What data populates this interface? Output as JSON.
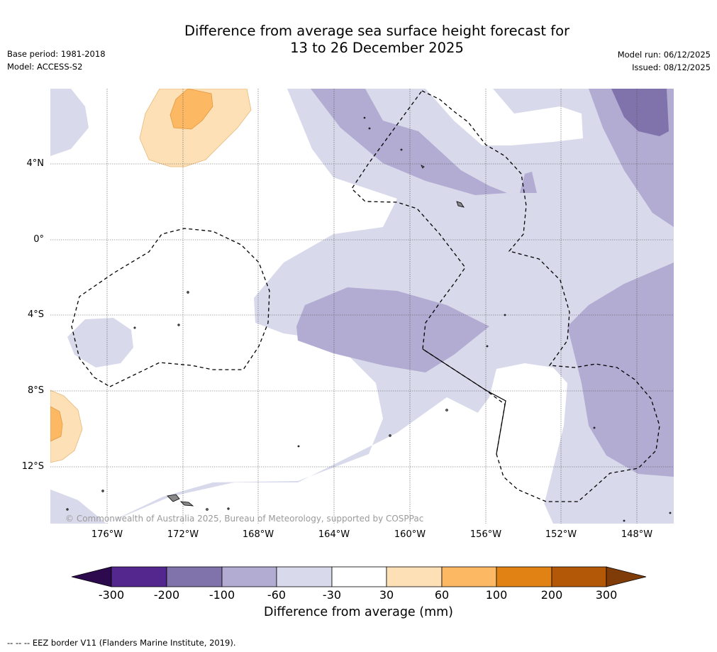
{
  "header": {
    "title_line1": "Difference from average sea surface height forecast for",
    "title_line2": "13 to 26 December 2025",
    "base_period": "Base period: 1981-2018",
    "model": "Model: ACCESS-S2",
    "model_run": "Model run: 06/12/2025",
    "issued": "Issued: 08/12/2025"
  },
  "map": {
    "lat_labels": [
      "4°N",
      "0°",
      "4°S",
      "8°S",
      "12°S"
    ],
    "lon_labels": [
      "176°W",
      "172°W",
      "168°W",
      "164°W",
      "160°W",
      "156°W",
      "152°W",
      "148°W"
    ],
    "copyright": "© Commonwealth of Australia 2025, Bureau of Meteorology, supported by COSPPac",
    "colors": {
      "neg_300": "#2d0a4e",
      "neg_200": "#54278f",
      "neg_100": "#8073ac",
      "neg_60": "#b2abd2",
      "neg_30": "#d8daeb",
      "zero": "#ffffff",
      "pos_30": "#fee0b6",
      "pos_60": "#fdb863",
      "pos_100": "#e08214",
      "pos_200": "#b35806",
      "pos_300": "#7f3b08"
    }
  },
  "colorbar": {
    "ticks": [
      "-300",
      "-200",
      "-100",
      "-60",
      "-30",
      "30",
      "60",
      "100",
      "200",
      "300"
    ],
    "label": "Difference from average (mm)"
  },
  "footnote": "--  --  -- EEZ border V11 (Flanders Marine Institute, 2019)."
}
